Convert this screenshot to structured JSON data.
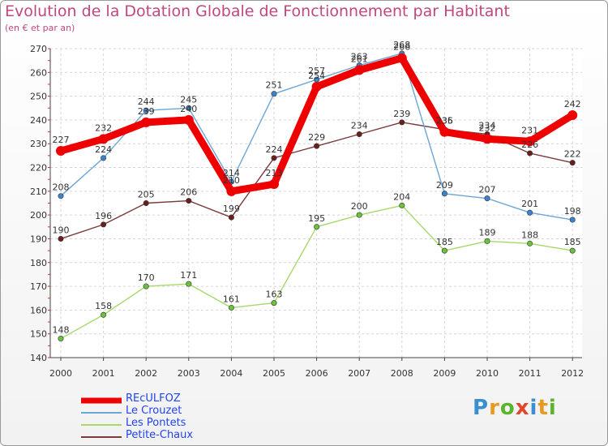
{
  "title": "Evolution de la Dotation Globale de Fonctionnement par Habitant",
  "subtitle": "(en € et par an)",
  "logo": {
    "text": "Proxiti",
    "letters": [
      "P",
      "r",
      "o",
      "x",
      "i",
      "t",
      "i"
    ]
  },
  "colors": {
    "title": "#c0477f",
    "axis": "#444444",
    "legend_text": "#2244ee"
  },
  "chart_data": {
    "type": "line",
    "title": "Evolution de la Dotation Globale de Fonctionnement par Habitant",
    "subtitle": "(en € et par an)",
    "xlabel": "",
    "ylabel": "",
    "x": [
      "2000",
      "2001",
      "2002",
      "2003",
      "2004",
      "2005",
      "2006",
      "2007",
      "2008",
      "2009",
      "2010",
      "2011",
      "2012"
    ],
    "ylim": [
      140,
      270
    ],
    "yticks": [
      140,
      150,
      160,
      170,
      180,
      190,
      200,
      210,
      220,
      230,
      240,
      250,
      260,
      270
    ],
    "grid": true,
    "legend_position": "bottom-left",
    "series": [
      {
        "name": "REcULFOZ",
        "color": "#ee0000",
        "marker_color": "#ee0000",
        "thick": true,
        "values": [
          227,
          232,
          239,
          240,
          210,
          213,
          254,
          261,
          266,
          235,
          232,
          231,
          242
        ],
        "labels": [
          "227",
          "232",
          "239",
          "240",
          "210",
          "213",
          "254",
          "261",
          "266",
          "235",
          "232",
          "231",
          "242"
        ]
      },
      {
        "name": "Le Crouzet",
        "color": "#6aa6d6",
        "marker_color": "#3a84cc",
        "thick": false,
        "values": [
          208,
          224,
          244,
          245,
          214,
          251,
          257,
          263,
          268,
          209,
          207,
          201,
          198
        ],
        "labels": [
          "208",
          "224",
          "244",
          "245",
          "214",
          "251",
          "257",
          "263",
          "268",
          "209",
          "207",
          "201",
          "198"
        ]
      },
      {
        "name": "Les Pontets",
        "color": "#a6d96a",
        "marker_color": "#6cc23a",
        "thick": false,
        "values": [
          148,
          158,
          170,
          171,
          161,
          163,
          195,
          200,
          204,
          185,
          189,
          188,
          185
        ],
        "labels": [
          "148",
          "158",
          "170",
          "171",
          "161",
          "163",
          "195",
          "200",
          "204",
          "185",
          "189",
          "188",
          "185"
        ]
      },
      {
        "name": "Petite-Chaux",
        "color": "#7a3a3a",
        "marker_color": "#6b1e1e",
        "thick": false,
        "values": [
          190,
          196,
          205,
          206,
          199,
          224,
          229,
          234,
          239,
          236,
          234,
          226,
          222
        ],
        "labels": [
          "190",
          "196",
          "205",
          "206",
          "199",
          "224",
          "229",
          "234",
          "239",
          "236",
          "234",
          "226",
          "222"
        ]
      }
    ]
  }
}
